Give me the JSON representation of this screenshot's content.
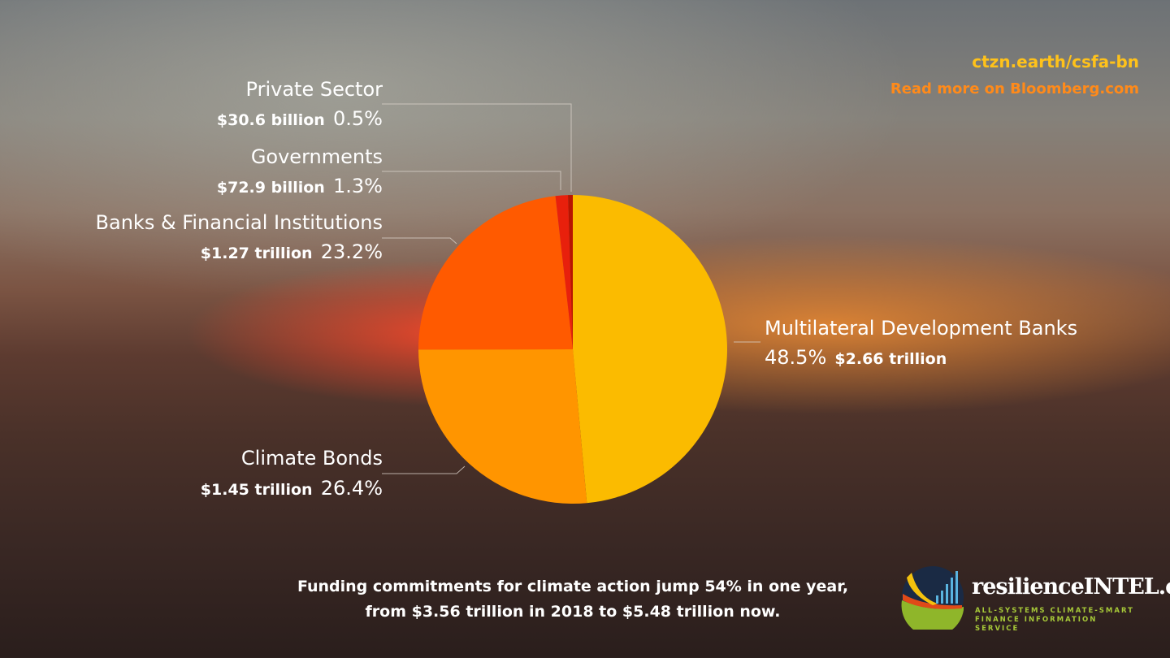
{
  "header": {
    "link": "ctzn.earth/csfa-bn",
    "read_more": "Read more on Bloomberg.com"
  },
  "chart_data": {
    "type": "pie",
    "title": "",
    "start": "top",
    "direction": "clockwise",
    "slices": [
      {
        "name": "Multilateral Development Banks",
        "amount": "$2.66 trillion",
        "percent_label": "48.5%",
        "value": 48.5,
        "color": "#fbbb00"
      },
      {
        "name": "Climate Bonds",
        "amount": "$1.45 trillion",
        "percent_label": "26.4%",
        "value": 26.4,
        "color": "#ff9500"
      },
      {
        "name": "Banks & Financial Institutions",
        "amount": "$1.27 trillion",
        "percent_label": "23.2%",
        "value": 23.2,
        "color": "#ff5a00"
      },
      {
        "name": "Governments",
        "amount": "$72.9 billion",
        "percent_label": "1.3%",
        "value": 1.3,
        "color": "#e8200c"
      },
      {
        "name": "Private Sector",
        "amount": "$30.6 billion",
        "percent_label": "0.5%",
        "value": 0.5,
        "color": "#b81400"
      }
    ]
  },
  "footer": {
    "line1": "Funding commitments for climate action jump 54% in one year,",
    "line2": "from $3.56 trillion in 2018 to $5.48 trillion now."
  },
  "logo": {
    "name": "resilienceINTEL.org",
    "tagline1": "ALL-SYSTEMS CLIMATE-SMART",
    "tagline2": "FINANCE INFORMATION SERVICE"
  }
}
